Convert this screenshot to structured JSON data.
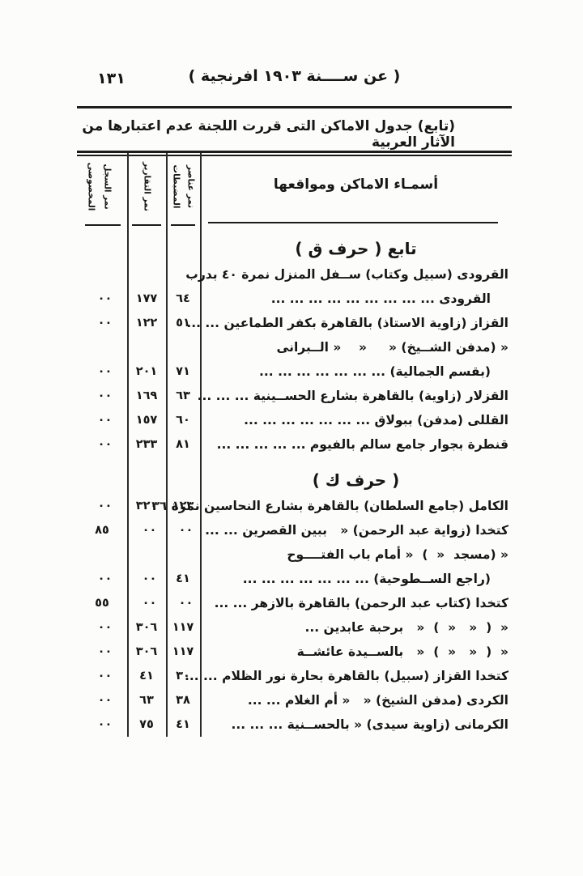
{
  "page": {
    "number": "١٣١",
    "year_line": "( عن ســــنة ١٩٠٣ افرنجية )",
    "caption": "(تابع) جدول الاماكن التى قررت اللجنة عدم اعتبارها من الآثار العربية"
  },
  "table": {
    "headers": {
      "names": "أسمـاء الاماكن ومواقعها",
      "elements_l1": "نمر عناصر",
      "elements_l2": "المضبطات",
      "reports": "نمر التقارير",
      "register_l1": "نمر السجل",
      "register_l2": "المخصوصى"
    },
    "rows": [
      {
        "type": "section",
        "label": "تابع ( حرف ق )"
      },
      {
        "type": "entry",
        "lines": [
          "القرودى (سبيل وكتاب) ســفل المنزل نمرة ٤٠ بدرب",
          "القرودى ... ... ... ... ... ... ... ... ..."
        ],
        "elements": "٦٤",
        "reports": "١٧٧",
        "register": "٠٠"
      },
      {
        "type": "entry",
        "lines": [
          "القزاز (زاوية الاستاذ) بالقاهرة بكفر الطماعين ... ..."
        ],
        "elements": "٥١",
        "reports": "١٢٢",
        "register": "٠٠"
      },
      {
        "type": "entry",
        "lines": [
          "« (مدفن الشــيخ) «     «    « الــبرانى",
          "(بقسم الجمالية) ... ... ... ... ... ... ..."
        ],
        "elements": "٧١",
        "reports": "٢٠١",
        "register": "٠٠"
      },
      {
        "type": "entry",
        "lines": [
          "القزلار (زاوية) بالقاهرة بشارع الحســينية ... ... ..."
        ],
        "elements": "٦٣",
        "reports": "١٦٩",
        "register": "٠٠"
      },
      {
        "type": "entry",
        "lines": [
          "القللى (مدفن) ببولاق ... ... ... ... ... ... ..."
        ],
        "elements": "٦٠",
        "reports": "١٥٧",
        "register": "٠٠"
      },
      {
        "type": "entry",
        "lines": [
          "قنطرة بجوار جامع سالم بالفيوم ... ... ... ... ..."
        ],
        "elements": "٨١",
        "reports": "٢٣٣",
        "register": "٠٠"
      },
      {
        "type": "section",
        "label": "( حرف ك )"
      },
      {
        "type": "entry",
        "lines": [
          "الكامل (جامع السلطان) بالقاهرة بشارع النحاسين نمرة ٣٦"
        ],
        "elements": "١٢٣",
        "reports": "٣٢٠",
        "register": "٠٠"
      },
      {
        "type": "entry",
        "lines": [
          "كتخدا (زواية عبد الرحمن) «   ببين القصرين ... ..."
        ],
        "elements": "٠٠",
        "reports": "٠٠",
        "register": "٨٥"
      },
      {
        "type": "entry",
        "lines": [
          "« (مسجد  «  )  « أمام باب الفتــــوح",
          "(راجع الســطوحية) ... ... ... ... ... ... ..."
        ],
        "elements": "٤١",
        "reports": "٠٠",
        "register": "٠٠"
      },
      {
        "type": "entry",
        "lines": [
          "كتخدا (كتاب عبد الرحمن) بالقاهرة بالازهر ... ..."
        ],
        "elements": "٠٠",
        "reports": "٠٠",
        "register": "٥٥"
      },
      {
        "type": "entry",
        "lines": [
          "«  (  «   «  )  «   برحبة عابدين ..."
        ],
        "elements": "١١٧",
        "reports": "٣٠٦",
        "register": "٠٠"
      },
      {
        "type": "entry",
        "lines": [
          "«  (  «   «  )  «   بالســيدة عائشــة"
        ],
        "elements": "١١٧",
        "reports": "٣٠٦",
        "register": "٠٠"
      },
      {
        "type": "entry",
        "lines": [
          "كتخدا القزاز (سبيل) بالقاهرة بحارة نور الظلام ... ..."
        ],
        "elements": "٣٠",
        "reports": "٤١",
        "register": "٠٠"
      },
      {
        "type": "entry",
        "lines": [
          "الكردى (مدفن الشيخ) «   « أم الغلام ... ..."
        ],
        "elements": "٣٨",
        "reports": "٦٣",
        "register": "٠٠"
      },
      {
        "type": "entry",
        "lines": [
          "الكرمانى (زاوية سيدى) « بالحســنية ... ... ..."
        ],
        "elements": "٤١",
        "reports": "٧٥",
        "register": "٠٠"
      }
    ]
  }
}
